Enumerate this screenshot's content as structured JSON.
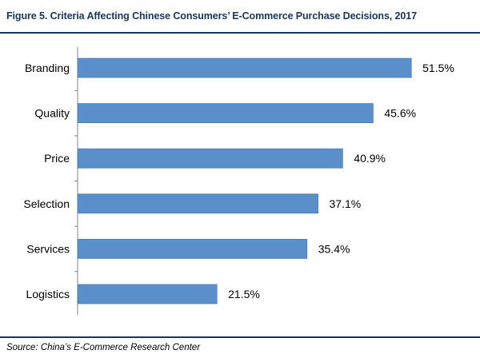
{
  "title": "Figure 5. Criteria Affecting Chinese Consumers’ E-Commerce Purchase Decisions, 2017",
  "source": "Source: China’s E-Commerce Research Center",
  "colors": {
    "bar": "#5b8fc9",
    "bar_stroke": "#4a7ab3",
    "axis": "#868686",
    "rule": "#17365d",
    "title": "#17365d"
  },
  "chart_data": {
    "type": "bar",
    "orientation": "horizontal",
    "categories": [
      "Branding",
      "Quality",
      "Price",
      "Selection",
      "Services",
      "Logistics"
    ],
    "values": [
      51.5,
      45.6,
      40.9,
      37.1,
      35.4,
      21.5
    ],
    "value_labels": [
      "51.5%",
      "45.6%",
      "40.9%",
      "37.1%",
      "35.4%",
      "21.5%"
    ],
    "unit": "%",
    "xlim": [
      0,
      60
    ],
    "grid": false,
    "legend": "none"
  }
}
